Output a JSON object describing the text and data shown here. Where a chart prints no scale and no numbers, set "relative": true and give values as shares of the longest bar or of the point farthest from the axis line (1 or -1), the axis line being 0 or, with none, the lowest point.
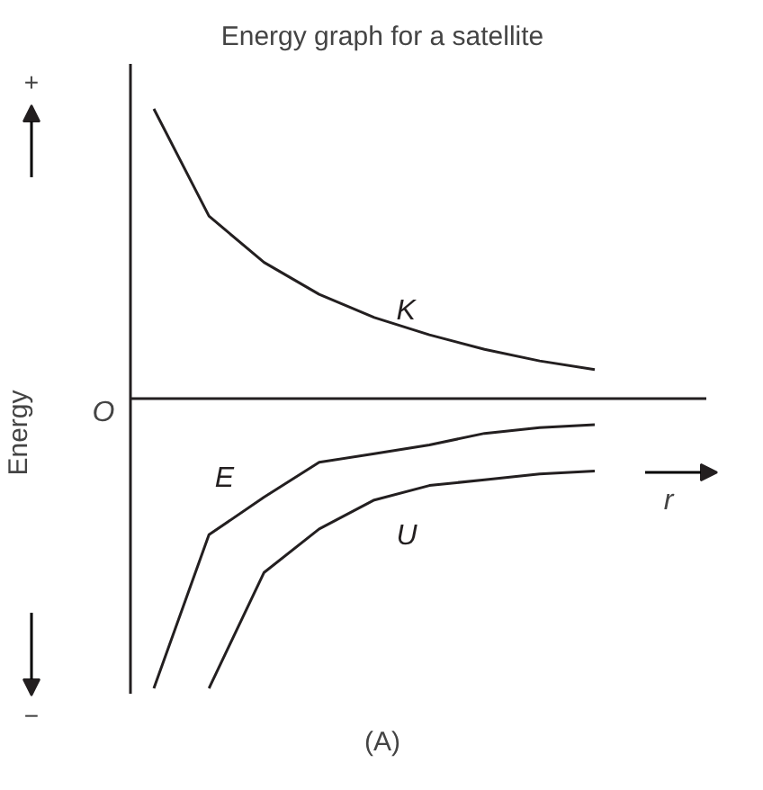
{
  "chart_data": {
    "type": "line",
    "title": "Energy graph for a satellite",
    "ylabel": "Energy",
    "xlabel": "r",
    "relative": true,
    "marker": "none",
    "line_style": "solid",
    "annotations": [
      "+",
      "−",
      "O",
      "(A)"
    ],
    "categories": [
      null,
      null,
      null,
      null,
      null,
      null,
      null,
      null,
      null
    ],
    "series": [
      {
        "name": "K",
        "color": "#231f20",
        "values": [
          1.0,
          0.63,
          0.47,
          0.36,
          0.28,
          0.22,
          0.17,
          0.13,
          0.1
        ]
      },
      {
        "name": "E",
        "color": "#231f20",
        "values": [
          -1.0,
          -0.47,
          -0.34,
          -0.22,
          -0.19,
          -0.16,
          -0.12,
          -0.1,
          -0.09
        ]
      },
      {
        "name": "U",
        "color": "#231f20",
        "values": [
          null,
          -1.0,
          -0.6,
          -0.45,
          -0.35,
          -0.3,
          -0.28,
          -0.26,
          -0.25
        ]
      }
    ]
  }
}
